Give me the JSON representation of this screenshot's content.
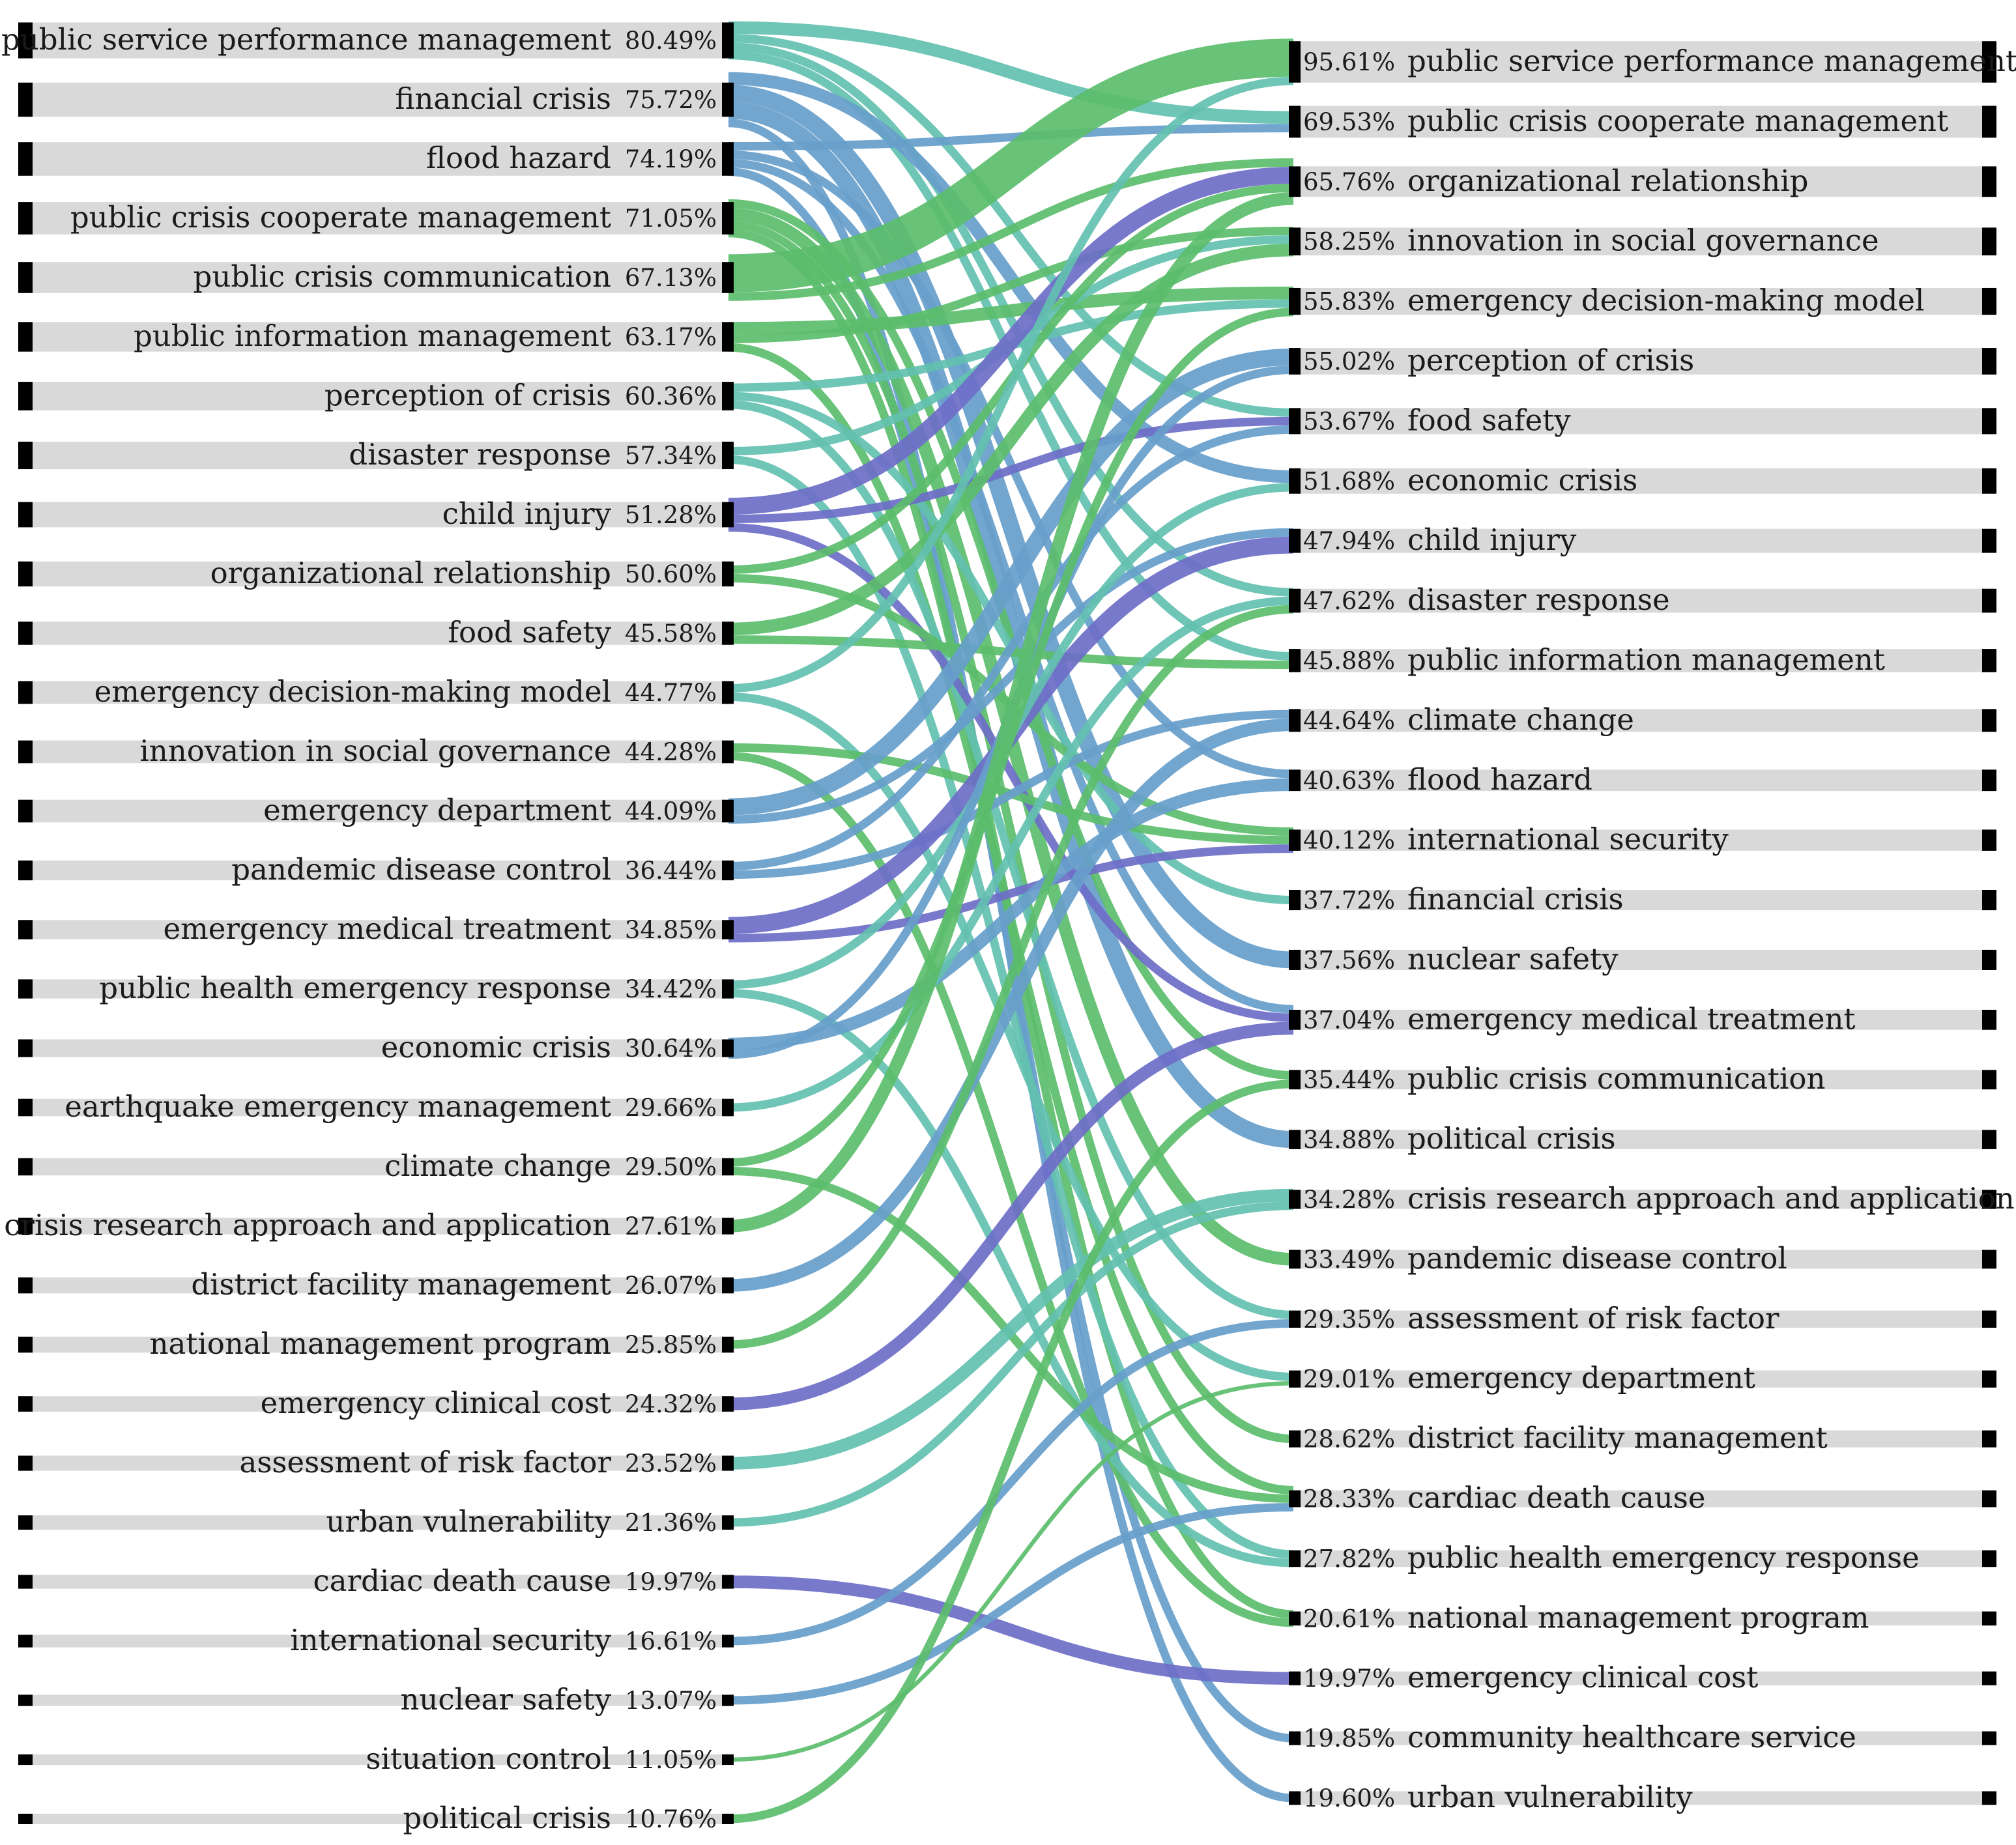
{
  "colors": {
    "row_band": "#d9d9d9",
    "bar": "#000000",
    "flow_palette": [
      "#5bbd6b",
      "#63c0b0",
      "#679ecb",
      "#6e6ec8"
    ]
  },
  "left_nodes": [
    {
      "label": "public service performance management",
      "pct": "80.49%"
    },
    {
      "label": "financial crisis",
      "pct": "75.72%"
    },
    {
      "label": "flood hazard",
      "pct": "74.19%"
    },
    {
      "label": "public crisis cooperate management",
      "pct": "71.05%"
    },
    {
      "label": "public crisis communication",
      "pct": "67.13%"
    },
    {
      "label": "public information management",
      "pct": "63.17%"
    },
    {
      "label": "perception of crisis",
      "pct": "60.36%"
    },
    {
      "label": "disaster response",
      "pct": "57.34%"
    },
    {
      "label": "child injury",
      "pct": "51.28%"
    },
    {
      "label": "organizational relationship",
      "pct": "50.60%"
    },
    {
      "label": "food safety",
      "pct": "45.58%"
    },
    {
      "label": "emergency decision-making model",
      "pct": "44.77%"
    },
    {
      "label": "innovation in social governance",
      "pct": "44.28%"
    },
    {
      "label": "emergency department",
      "pct": "44.09%"
    },
    {
      "label": "pandemic disease control",
      "pct": "36.44%"
    },
    {
      "label": "emergency medical treatment",
      "pct": "34.85%"
    },
    {
      "label": "public health emergency response",
      "pct": "34.42%"
    },
    {
      "label": "economic crisis",
      "pct": "30.64%"
    },
    {
      "label": "earthquake emergency management",
      "pct": "29.66%"
    },
    {
      "label": "climate change",
      "pct": "29.50%"
    },
    {
      "label": "crisis research approach and application",
      "pct": "27.61%"
    },
    {
      "label": "district facility management",
      "pct": "26.07%"
    },
    {
      "label": "national management program",
      "pct": "25.85%"
    },
    {
      "label": "emergency clinical cost",
      "pct": "24.32%"
    },
    {
      "label": "assessment of risk factor",
      "pct": "23.52%"
    },
    {
      "label": "urban vulnerability",
      "pct": "21.36%"
    },
    {
      "label": "cardiac death cause",
      "pct": "19.97%"
    },
    {
      "label": "international security",
      "pct": "16.61%"
    },
    {
      "label": "nuclear safety",
      "pct": "13.07%"
    },
    {
      "label": "situation control",
      "pct": "11.05%"
    },
    {
      "label": "political crisis",
      "pct": "10.76%"
    }
  ],
  "right_nodes": [
    {
      "label": "public service performance management",
      "pct": "95.61%"
    },
    {
      "label": "public crisis cooperate management",
      "pct": "69.53%"
    },
    {
      "label": "organizational relationship",
      "pct": "65.76%"
    },
    {
      "label": "innovation in social governance",
      "pct": "58.25%"
    },
    {
      "label": "emergency decision-making model",
      "pct": "55.83%"
    },
    {
      "label": "perception of crisis",
      "pct": "55.02%"
    },
    {
      "label": "food safety",
      "pct": "53.67%"
    },
    {
      "label": "economic crisis",
      "pct": "51.68%"
    },
    {
      "label": "child injury",
      "pct": "47.94%"
    },
    {
      "label": "disaster response",
      "pct": "47.62%"
    },
    {
      "label": "public information management",
      "pct": "45.88%"
    },
    {
      "label": "climate change",
      "pct": "44.64%"
    },
    {
      "label": "flood hazard",
      "pct": "40.63%"
    },
    {
      "label": "international security",
      "pct": "40.12%"
    },
    {
      "label": "financial crisis",
      "pct": "37.72%"
    },
    {
      "label": "nuclear safety",
      "pct": "37.56%"
    },
    {
      "label": "emergency medical treatment",
      "pct": "37.04%"
    },
    {
      "label": "public crisis communication",
      "pct": "35.44%"
    },
    {
      "label": "political crisis",
      "pct": "34.88%"
    },
    {
      "label": "crisis research approach and application",
      "pct": "34.28%"
    },
    {
      "label": "pandemic disease control",
      "pct": "33.49%"
    },
    {
      "label": "assessment of risk factor",
      "pct": "29.35%"
    },
    {
      "label": "emergency department",
      "pct": "29.01%"
    },
    {
      "label": "district facility management",
      "pct": "28.62%"
    },
    {
      "label": "cardiac death cause",
      "pct": "28.33%"
    },
    {
      "label": "public health emergency response",
      "pct": "27.82%"
    },
    {
      "label": "national management program",
      "pct": "20.61%"
    },
    {
      "label": "emergency clinical cost",
      "pct": "19.97%"
    },
    {
      "label": "community healthcare service",
      "pct": "19.85%"
    },
    {
      "label": "urban vulnerability",
      "pct": "19.60%"
    }
  ],
  "flows": [
    {
      "from": 0,
      "to": 1,
      "weight": 3,
      "color": 1
    },
    {
      "from": 0,
      "to": 6,
      "weight": 2,
      "color": 1
    },
    {
      "from": 0,
      "to": 9,
      "weight": 2,
      "color": 1
    },
    {
      "from": 0,
      "to": 10,
      "weight": 2,
      "color": 1
    },
    {
      "from": 1,
      "to": 7,
      "weight": 3,
      "color": 2
    },
    {
      "from": 1,
      "to": 15,
      "weight": 4,
      "color": 2
    },
    {
      "from": 1,
      "to": 18,
      "weight": 4,
      "color": 2
    },
    {
      "from": 1,
      "to": 29,
      "weight": 2,
      "color": 2
    },
    {
      "from": 2,
      "to": 1,
      "weight": 2,
      "color": 2
    },
    {
      "from": 2,
      "to": 12,
      "weight": 2,
      "color": 2
    },
    {
      "from": 2,
      "to": 16,
      "weight": 2,
      "color": 2
    },
    {
      "from": 2,
      "to": 28,
      "weight": 2,
      "color": 2
    },
    {
      "from": 3,
      "to": 17,
      "weight": 2,
      "color": 0
    },
    {
      "from": 3,
      "to": 20,
      "weight": 3,
      "color": 0
    },
    {
      "from": 3,
      "to": 23,
      "weight": 2,
      "color": 0
    },
    {
      "from": 3,
      "to": 26,
      "weight": 2,
      "color": 0
    },
    {
      "from": 4,
      "to": 0,
      "weight": 9,
      "color": 0
    },
    {
      "from": 4,
      "to": 2,
      "weight": 2,
      "color": 0
    },
    {
      "from": 5,
      "to": 4,
      "weight": 3,
      "color": 0
    },
    {
      "from": 5,
      "to": 3,
      "weight": 2,
      "color": 0
    },
    {
      "from": 5,
      "to": 24,
      "weight": 2,
      "color": 0
    },
    {
      "from": 6,
      "to": 4,
      "weight": 2,
      "color": 1
    },
    {
      "from": 6,
      "to": 14,
      "weight": 2,
      "color": 1
    },
    {
      "from": 6,
      "to": 21,
      "weight": 2,
      "color": 1
    },
    {
      "from": 7,
      "to": 3,
      "weight": 2,
      "color": 1
    },
    {
      "from": 7,
      "to": 25,
      "weight": 2,
      "color": 1
    },
    {
      "from": 8,
      "to": 2,
      "weight": 4,
      "color": 3
    },
    {
      "from": 8,
      "to": 6,
      "weight": 2,
      "color": 3
    },
    {
      "from": 8,
      "to": 16,
      "weight": 2,
      "color": 3
    },
    {
      "from": 9,
      "to": 2,
      "weight": 2,
      "color": 0
    },
    {
      "from": 9,
      "to": 13,
      "weight": 2,
      "color": 0
    },
    {
      "from": 10,
      "to": 3,
      "weight": 3,
      "color": 0
    },
    {
      "from": 10,
      "to": 10,
      "weight": 2,
      "color": 0
    },
    {
      "from": 11,
      "to": 0,
      "weight": 2,
      "color": 1
    },
    {
      "from": 11,
      "to": 22,
      "weight": 2,
      "color": 1
    },
    {
      "from": 12,
      "to": 13,
      "weight": 2,
      "color": 0
    },
    {
      "from": 12,
      "to": 26,
      "weight": 2,
      "color": 0
    },
    {
      "from": 13,
      "to": 5,
      "weight": 4,
      "color": 2
    },
    {
      "from": 13,
      "to": 8,
      "weight": 2,
      "color": 2
    },
    {
      "from": 14,
      "to": 6,
      "weight": 2,
      "color": 2
    },
    {
      "from": 14,
      "to": 11,
      "weight": 2,
      "color": 2
    },
    {
      "from": 15,
      "to": 8,
      "weight": 4,
      "color": 3
    },
    {
      "from": 15,
      "to": 13,
      "weight": 2,
      "color": 3
    },
    {
      "from": 16,
      "to": 7,
      "weight": 2,
      "color": 1
    },
    {
      "from": 16,
      "to": 25,
      "weight": 2,
      "color": 1
    },
    {
      "from": 17,
      "to": 12,
      "weight": 3,
      "color": 2
    },
    {
      "from": 17,
      "to": 5,
      "weight": 2,
      "color": 2
    },
    {
      "from": 18,
      "to": 9,
      "weight": 2,
      "color": 1
    },
    {
      "from": 19,
      "to": 4,
      "weight": 2,
      "color": 0
    },
    {
      "from": 19,
      "to": 24,
      "weight": 2,
      "color": 0
    },
    {
      "from": 20,
      "to": 2,
      "weight": 3,
      "color": 0
    },
    {
      "from": 21,
      "to": 11,
      "weight": 3,
      "color": 2
    },
    {
      "from": 22,
      "to": 9,
      "weight": 2,
      "color": 0
    },
    {
      "from": 23,
      "to": 16,
      "weight": 3,
      "color": 3
    },
    {
      "from": 24,
      "to": 19,
      "weight": 3,
      "color": 1
    },
    {
      "from": 25,
      "to": 19,
      "weight": 2,
      "color": 1
    },
    {
      "from": 26,
      "to": 27,
      "weight": 3,
      "color": 3
    },
    {
      "from": 27,
      "to": 21,
      "weight": 2,
      "color": 2
    },
    {
      "from": 28,
      "to": 24,
      "weight": 2,
      "color": 2
    },
    {
      "from": 29,
      "to": 22,
      "weight": 1,
      "color": 0
    },
    {
      "from": 30,
      "to": 17,
      "weight": 2,
      "color": 0
    }
  ]
}
